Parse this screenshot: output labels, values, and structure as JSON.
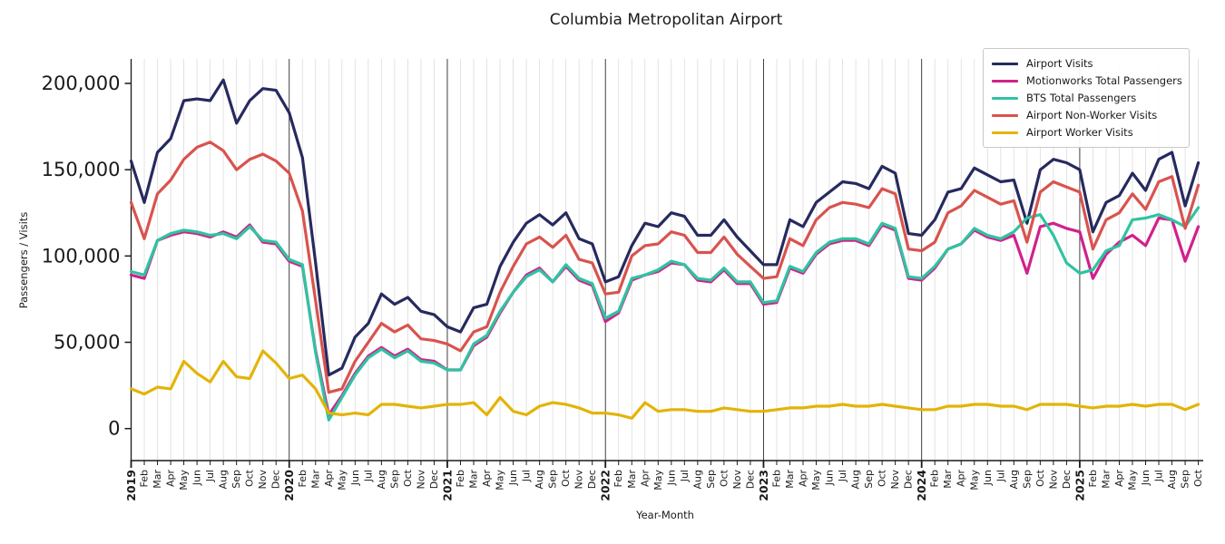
{
  "title": "Columbia Metropolitan Airport",
  "chart_data": {
    "type": "line",
    "title": "Columbia Metropolitan Airport",
    "xlabel": "Year-Month",
    "ylabel": "Passengers / Visits",
    "legend_position": "upper-right",
    "grid": "vertical-monthly, dark line at each January",
    "ylim": [
      0,
      214000
    ],
    "yticks": [
      {
        "value": 0,
        "label": "0"
      },
      {
        "value": 50000,
        "label": "50,000"
      },
      {
        "value": 100000,
        "label": "100,000"
      },
      {
        "value": 150000,
        "label": "150,000"
      },
      {
        "value": 200000,
        "label": "200,000"
      }
    ],
    "x_tick_labels": [
      "2019",
      "Feb",
      "Mar",
      "Apr",
      "May",
      "Jun",
      "Jul",
      "Aug",
      "Sep",
      "Oct",
      "Nov",
      "Dec",
      "2020",
      "Feb",
      "Mar",
      "Apr",
      "May",
      "Jun",
      "Jul",
      "Aug",
      "Sep",
      "Oct",
      "Nov",
      "Dec",
      "2021",
      "Feb",
      "Mar",
      "Apr",
      "May",
      "Jun",
      "Jul",
      "Aug",
      "Sep",
      "Oct",
      "Nov",
      "Dec",
      "2022",
      "Feb",
      "Mar",
      "Apr",
      "May",
      "Jun",
      "Jul",
      "Aug",
      "Sep",
      "Oct",
      "Nov",
      "Dec",
      "2023",
      "Feb",
      "Mar",
      "Apr",
      "May",
      "Jun",
      "Jul",
      "Aug",
      "Sep",
      "Oct",
      "Nov",
      "Dec",
      "2024",
      "Feb",
      "Mar",
      "Apr",
      "May",
      "Jun",
      "Jul",
      "Aug",
      "Sep",
      "Oct",
      "Nov",
      "Dec",
      "2025",
      "Feb",
      "Mar",
      "Apr",
      "May",
      "Jun",
      "Jul",
      "Aug",
      "Sep",
      "Oct"
    ],
    "series": [
      {
        "name": "Airport Visits",
        "color": "#262a5e",
        "values": [
          155000,
          131000,
          160000,
          168000,
          190000,
          191000,
          190000,
          202000,
          177000,
          190000,
          197000,
          196000,
          183000,
          157000,
          96000,
          31000,
          35000,
          53000,
          61000,
          78000,
          72000,
          76000,
          68000,
          66000,
          59000,
          56000,
          70000,
          72000,
          94000,
          108000,
          119000,
          124000,
          118000,
          125000,
          110000,
          107000,
          85000,
          88000,
          106000,
          119000,
          117000,
          125000,
          123000,
          112000,
          112000,
          121000,
          111000,
          103000,
          95000,
          95000,
          121000,
          117000,
          131000,
          137000,
          143000,
          142000,
          139000,
          152000,
          148000,
          113000,
          112000,
          121000,
          137000,
          139000,
          151000,
          147000,
          143000,
          144000,
          119000,
          150000,
          156000,
          154000,
          150000,
          114000,
          131000,
          135000,
          148000,
          138000,
          156000,
          160000,
          129000,
          154000
        ]
      },
      {
        "name": "Motionworks Total Passengers",
        "color": "#d0218c",
        "values": [
          89000,
          87000,
          109000,
          112000,
          114000,
          113000,
          111000,
          114000,
          111000,
          118000,
          108000,
          107000,
          97000,
          94000,
          45000,
          8000,
          19000,
          32000,
          42000,
          47000,
          42000,
          46000,
          40000,
          39000,
          34000,
          34000,
          48000,
          53000,
          67000,
          79000,
          89000,
          93000,
          85000,
          94000,
          86000,
          83000,
          62000,
          67000,
          86000,
          89000,
          91000,
          96000,
          95000,
          86000,
          85000,
          92000,
          84000,
          84000,
          72000,
          73000,
          93000,
          90000,
          101000,
          107000,
          109000,
          109000,
          106000,
          118000,
          115000,
          87000,
          86000,
          93000,
          104000,
          107000,
          115000,
          111000,
          109000,
          112000,
          90000,
          117000,
          119000,
          116000,
          114000,
          87000,
          101000,
          108000,
          112000,
          106000,
          122000,
          121000,
          97000,
          117000
        ]
      },
      {
        "name": "BTS Total Passengers",
        "color": "#2fc3a1",
        "values": [
          91000,
          89000,
          109000,
          113000,
          115000,
          114000,
          112000,
          113000,
          110000,
          117000,
          109000,
          108000,
          98000,
          95000,
          44000,
          5000,
          18000,
          31000,
          41000,
          46000,
          41000,
          45000,
          39000,
          38000,
          34000,
          34000,
          49000,
          54000,
          68000,
          79000,
          88000,
          92000,
          85000,
          95000,
          87000,
          84000,
          64000,
          68000,
          87000,
          89000,
          92000,
          97000,
          95000,
          87000,
          86000,
          93000,
          85000,
          85000,
          73000,
          74000,
          94000,
          91000,
          102000,
          108000,
          110000,
          110000,
          107000,
          119000,
          116000,
          88000,
          87000,
          94000,
          104000,
          107000,
          116000,
          112000,
          110000,
          114000,
          122000,
          124000,
          112000,
          96000,
          90000,
          92000,
          103000,
          106000,
          121000,
          122000,
          124000,
          121000,
          117000,
          128000
        ]
      },
      {
        "name": "Airport Non-Worker Visits",
        "color": "#d9534e",
        "values": [
          131000,
          110000,
          136000,
          144000,
          156000,
          163000,
          166000,
          161000,
          150000,
          156000,
          159000,
          155000,
          148000,
          126000,
          74000,
          21000,
          23000,
          39000,
          50000,
          61000,
          56000,
          60000,
          52000,
          51000,
          49000,
          45000,
          56000,
          59000,
          79000,
          94000,
          107000,
          111000,
          105000,
          112000,
          98000,
          96000,
          78000,
          79000,
          100000,
          106000,
          107000,
          114000,
          112000,
          102000,
          102000,
          111000,
          101000,
          94000,
          87000,
          88000,
          110000,
          106000,
          121000,
          128000,
          131000,
          130000,
          128000,
          139000,
          136000,
          104000,
          103000,
          108000,
          125000,
          129000,
          138000,
          134000,
          130000,
          132000,
          108000,
          137000,
          143000,
          140000,
          137000,
          104000,
          121000,
          125000,
          136000,
          127000,
          143000,
          146000,
          116000,
          141000
        ]
      },
      {
        "name": "Airport Worker Visits",
        "color": "#e3b408",
        "values": [
          23000,
          20000,
          24000,
          23000,
          39000,
          32000,
          27000,
          39000,
          30000,
          29000,
          45000,
          38000,
          29000,
          31000,
          23000,
          9000,
          8000,
          9000,
          8000,
          14000,
          14000,
          13000,
          12000,
          13000,
          14000,
          14000,
          15000,
          8000,
          18000,
          10000,
          8000,
          13000,
          15000,
          14000,
          12000,
          9000,
          9000,
          8000,
          6000,
          15000,
          10000,
          11000,
          11000,
          10000,
          10000,
          12000,
          11000,
          10000,
          10000,
          11000,
          12000,
          12000,
          13000,
          13000,
          14000,
          13000,
          13000,
          14000,
          13000,
          12000,
          11000,
          11000,
          13000,
          13000,
          14000,
          14000,
          13000,
          13000,
          11000,
          14000,
          14000,
          14000,
          13000,
          12000,
          13000,
          13000,
          14000,
          13000,
          14000,
          14000,
          11000,
          14000
        ]
      }
    ]
  }
}
